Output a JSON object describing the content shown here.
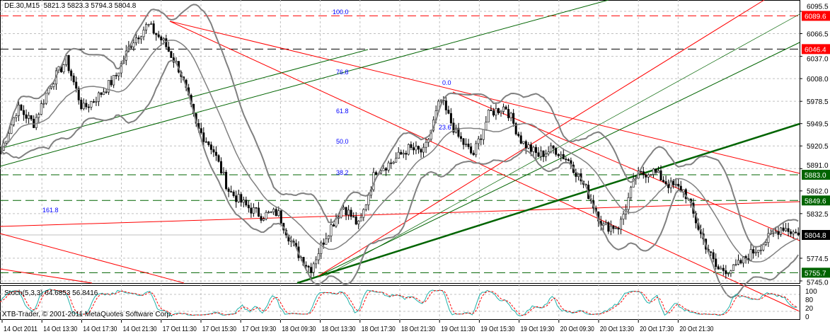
{
  "header": {
    "symbol": "DE.30,M15",
    "ohlc": "5821.3 5823.3 5794.3 5804.8"
  },
  "stoch": {
    "label": "Stoch(5,3,3) 64.6853 56.8416",
    "axis": [
      "100",
      "80",
      "20",
      "0"
    ]
  },
  "copyright": "XTB-Trader, © 2001-2011 MetaQuotes Software Corp.",
  "colors": {
    "bg": "#ffffff",
    "candle": "#000000",
    "bollinger": "#808080",
    "hline_red": "#ff0000",
    "hline_green": "#006400",
    "fib": "#0000ff",
    "stoch_main": "#20b2aa",
    "stoch_signal": "#ff0000"
  },
  "chart_data": {
    "type": "candlestick",
    "ylim": [
      5745.0,
      6095.5
    ],
    "y_ticks": [
      "6095.5",
      "6066.5",
      "6037.0",
      "6008.0",
      "5978.5",
      "5949.5",
      "5920.5",
      "5891.0",
      "5862.0",
      "5832.5",
      "5774.5",
      "5745.0"
    ],
    "x_ticks": [
      "14 Oct 2011",
      "14 Oct 13:30",
      "14 Oct 17:30",
      "14 Oct 21:30",
      "17 Oct 11:30",
      "17 Oct 15:30",
      "17 Oct 19:30",
      "18 Oct 09:30",
      "18 Oct 13:30",
      "18 Oct 17:30",
      "18 Oct 21:30",
      "19 Oct 11:30",
      "19 Oct 15:30",
      "19 Oct 19:30",
      "20 Oct 09:30",
      "20 Oct 13:30",
      "20 Oct 17:30",
      "20 Oct 21:30"
    ],
    "approx_close_path": [
      5915,
      5970,
      5950,
      6000,
      6032,
      5968,
      5986,
      6009,
      6055,
      6078,
      6055,
      6018,
      5945,
      5917,
      5862,
      5843,
      5830,
      5834,
      5788,
      5760,
      5806,
      5843,
      5816,
      5889,
      5899,
      5917,
      5912,
      5981,
      5935,
      5908,
      5963,
      5972,
      5926,
      5908,
      5917,
      5899,
      5862,
      5816,
      5816,
      5880,
      5889,
      5871,
      5862,
      5806,
      5760,
      5760,
      5779,
      5797,
      5816,
      5804.8
    ],
    "price_levels": [
      {
        "label": "6089.6",
        "value": 6089.6,
        "color": "#ff0000"
      },
      {
        "label": "6046.4",
        "value": 6046.4,
        "color": "#ff0000"
      },
      {
        "label": "5883.0",
        "value": 5883.0,
        "color": "#006400"
      },
      {
        "label": "5849.6",
        "value": 5849.6,
        "color": "#006400"
      },
      {
        "label": "5804.8",
        "value": 5804.8,
        "color": "#000000"
      },
      {
        "label": "5755.7",
        "value": 5755.7,
        "color": "#006400"
      }
    ],
    "fib_labels": [
      "100.0",
      "76.8",
      "61.8",
      "50.0",
      "38.2",
      "23.6",
      "0.0",
      "161.8"
    ]
  }
}
